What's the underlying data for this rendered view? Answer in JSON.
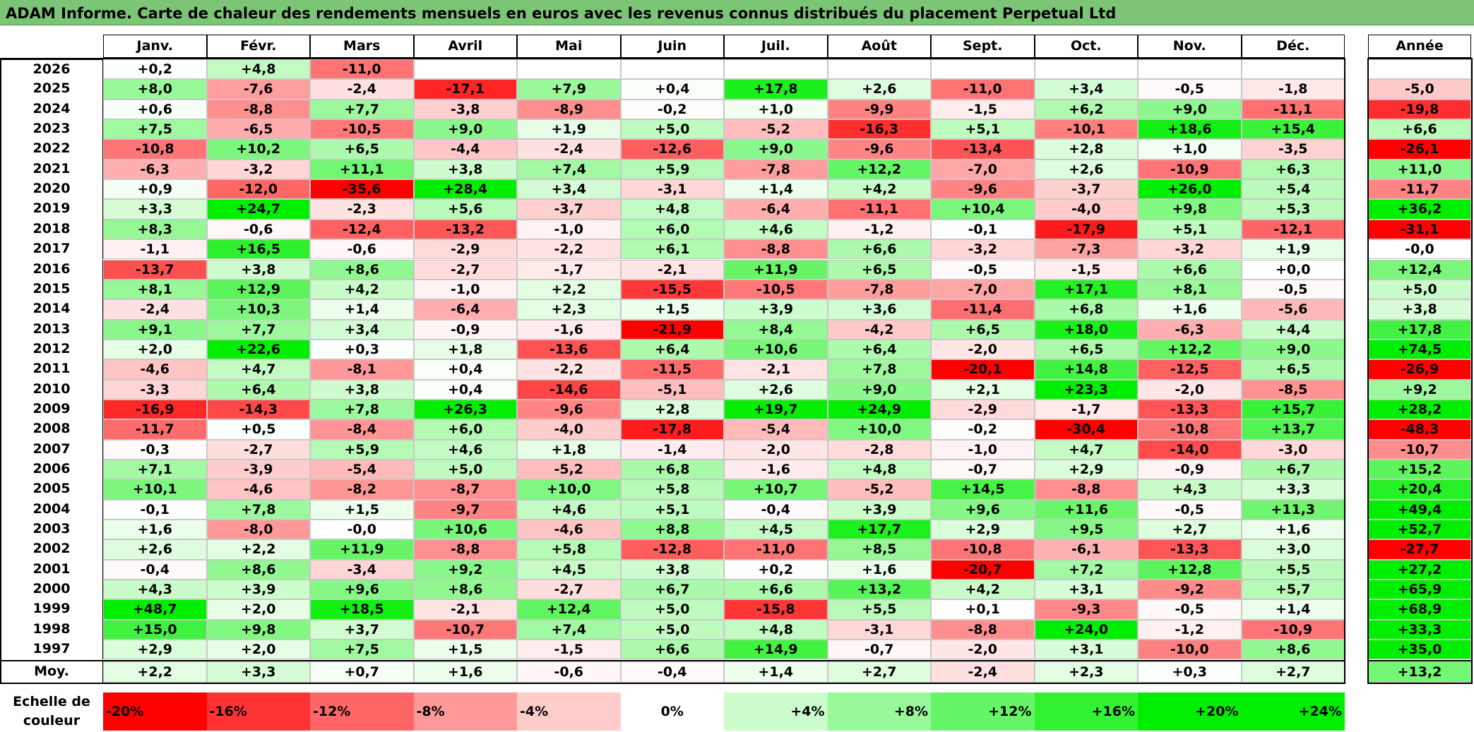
{
  "title": "ADAM Informe. Carte de chaleur des rendements mensuels en euros avec les revenus connus distribués du placement Perpetual Ltd",
  "chart_data": {
    "type": "heatmap",
    "title": "ADAM Informe. Carte de chaleur des rendements mensuels en euros avec les revenus connus distribués du placement Perpetual Ltd",
    "columns": [
      "Janv.",
      "Févr.",
      "Mars",
      "Avril",
      "Mai",
      "Juin",
      "Juil.",
      "Août",
      "Sept.",
      "Oct.",
      "Nov.",
      "Déc."
    ],
    "annual_header": "Année",
    "average_label": "Moy.",
    "rows": [
      {
        "year": "2026",
        "months": [
          "+0,2",
          "+4,8",
          "-11,0",
          "",
          "",
          "",
          "",
          "",
          "",
          "",
          "",
          ""
        ],
        "annual": ""
      },
      {
        "year": "2025",
        "months": [
          "+8,0",
          "-7,6",
          "-2,4",
          "-17,1",
          "+7,9",
          "+0,4",
          "+17,8",
          "+2,6",
          "-11,0",
          "+3,4",
          "-0,5",
          "-1,8"
        ],
        "annual": "-5,0"
      },
      {
        "year": "2024",
        "months": [
          "+0,6",
          "-8,8",
          "+7,7",
          "-3,8",
          "-8,9",
          "-0,2",
          "+1,0",
          "-9,9",
          "-1,5",
          "+6,2",
          "+9,0",
          "-11,1"
        ],
        "annual": "-19,8"
      },
      {
        "year": "2023",
        "months": [
          "+7,5",
          "-6,5",
          "-10,5",
          "+9,0",
          "+1,9",
          "+5,0",
          "-5,2",
          "-16,3",
          "+5,1",
          "-10,1",
          "+18,6",
          "+15,4"
        ],
        "annual": "+6,6"
      },
      {
        "year": "2022",
        "months": [
          "-10,8",
          "+10,2",
          "+6,5",
          "-4,4",
          "-2,4",
          "-12,6",
          "+9,0",
          "-9,6",
          "-13,4",
          "+2,8",
          "+1,0",
          "-3,5"
        ],
        "annual": "-26,1"
      },
      {
        "year": "2021",
        "months": [
          "-6,3",
          "-3,2",
          "+11,1",
          "+3,8",
          "+7,4",
          "+5,9",
          "-7,8",
          "+12,2",
          "-7,0",
          "+2,6",
          "-10,9",
          "+6,3"
        ],
        "annual": "+11,0"
      },
      {
        "year": "2020",
        "months": [
          "+0,9",
          "-12,0",
          "-35,6",
          "+28,4",
          "+3,4",
          "-3,1",
          "+1,4",
          "+4,2",
          "-9,6",
          "-3,7",
          "+26,0",
          "+5,4"
        ],
        "annual": "-11,7"
      },
      {
        "year": "2019",
        "months": [
          "+3,3",
          "+24,7",
          "-2,3",
          "+5,6",
          "-3,7",
          "+4,8",
          "-6,4",
          "-11,1",
          "+10,4",
          "-4,0",
          "+9,8",
          "+5,3"
        ],
        "annual": "+36,2"
      },
      {
        "year": "2018",
        "months": [
          "+8,3",
          "-0,6",
          "-12,4",
          "-13,2",
          "-1,0",
          "+6,0",
          "+4,6",
          "-1,2",
          "-0,1",
          "-17,9",
          "+5,1",
          "-12,1"
        ],
        "annual": "-31,1"
      },
      {
        "year": "2017",
        "months": [
          "-1,1",
          "+16,5",
          "-0,6",
          "-2,9",
          "-2,2",
          "+6,1",
          "-8,8",
          "+6,6",
          "-3,2",
          "-7,3",
          "-3,2",
          "+1,9"
        ],
        "annual": "-0,0"
      },
      {
        "year": "2016",
        "months": [
          "-13,7",
          "+3,8",
          "+8,6",
          "-2,7",
          "-1,7",
          "-2,1",
          "+11,9",
          "+6,5",
          "-0,5",
          "-1,5",
          "+6,6",
          "+0,0"
        ],
        "annual": "+12,4"
      },
      {
        "year": "2015",
        "months": [
          "+8,1",
          "+12,9",
          "+4,2",
          "-1,0",
          "+2,2",
          "-15,5",
          "-10,5",
          "-7,8",
          "-7,0",
          "+17,1",
          "+8,1",
          "-0,5"
        ],
        "annual": "+5,0"
      },
      {
        "year": "2014",
        "months": [
          "-2,4",
          "+10,3",
          "+1,4",
          "-6,4",
          "+2,3",
          "+1,5",
          "+3,9",
          "+3,6",
          "-11,4",
          "+6,8",
          "+1,6",
          "-5,6"
        ],
        "annual": "+3,8"
      },
      {
        "year": "2013",
        "months": [
          "+9,1",
          "+7,7",
          "+3,4",
          "-0,9",
          "-1,6",
          "-21,9",
          "+8,4",
          "-4,2",
          "+6,5",
          "+18,0",
          "-6,3",
          "+4,4"
        ],
        "annual": "+17,8"
      },
      {
        "year": "2012",
        "months": [
          "+2,0",
          "+22,6",
          "+0,3",
          "+1,8",
          "-13,6",
          "+6,4",
          "+10,6",
          "+6,4",
          "-2,0",
          "+6,5",
          "+12,2",
          "+9,0"
        ],
        "annual": "+74,5"
      },
      {
        "year": "2011",
        "months": [
          "-4,6",
          "+4,7",
          "-8,1",
          "+0,4",
          "-2,2",
          "-11,5",
          "-2,1",
          "+7,8",
          "-20,1",
          "+14,8",
          "-12,5",
          "+6,5"
        ],
        "annual": "-26,9"
      },
      {
        "year": "2010",
        "months": [
          "-3,3",
          "+6,4",
          "+3,8",
          "+0,4",
          "-14,6",
          "-5,1",
          "+2,6",
          "+9,0",
          "+2,1",
          "+23,3",
          "-2,0",
          "-8,5"
        ],
        "annual": "+9,2"
      },
      {
        "year": "2009",
        "months": [
          "-16,9",
          "-14,3",
          "+7,8",
          "+26,3",
          "-9,6",
          "+2,8",
          "+19,7",
          "+24,9",
          "-2,9",
          "-1,7",
          "-13,3",
          "+15,7"
        ],
        "annual": "+28,2"
      },
      {
        "year": "2008",
        "months": [
          "-11,7",
          "+0,5",
          "-8,4",
          "+6,0",
          "-4,0",
          "-17,8",
          "-5,4",
          "+10,0",
          "-0,2",
          "-30,4",
          "-10,8",
          "+13,7"
        ],
        "annual": "-48,3"
      },
      {
        "year": "2007",
        "months": [
          "-0,3",
          "-2,7",
          "+5,9",
          "+4,6",
          "+1,8",
          "-1,4",
          "-2,0",
          "-2,8",
          "-1,0",
          "+4,7",
          "-14,0",
          "-3,0"
        ],
        "annual": "-10,7"
      },
      {
        "year": "2006",
        "months": [
          "+7,1",
          "-3,9",
          "-5,4",
          "+5,0",
          "-5,2",
          "+6,8",
          "-1,6",
          "+4,8",
          "-0,7",
          "+2,9",
          "-0,9",
          "+6,7"
        ],
        "annual": "+15,2"
      },
      {
        "year": "2005",
        "months": [
          "+10,1",
          "-4,6",
          "-8,2",
          "-8,7",
          "+10,0",
          "+5,8",
          "+10,7",
          "-5,2",
          "+14,5",
          "-8,8",
          "+4,3",
          "+3,3"
        ],
        "annual": "+20,4"
      },
      {
        "year": "2004",
        "months": [
          "-0,1",
          "+7,8",
          "+1,5",
          "-9,7",
          "+4,6",
          "+5,1",
          "-0,4",
          "+3,9",
          "+9,6",
          "+11,6",
          "-0,5",
          "+11,3"
        ],
        "annual": "+49,4"
      },
      {
        "year": "2003",
        "months": [
          "+1,6",
          "-8,0",
          "-0,0",
          "+10,6",
          "-4,6",
          "+8,8",
          "+4,5",
          "+17,7",
          "+2,9",
          "+9,5",
          "+2,7",
          "+1,6"
        ],
        "annual": "+52,7"
      },
      {
        "year": "2002",
        "months": [
          "+2,6",
          "+2,2",
          "+11,9",
          "-8,8",
          "+5,8",
          "-12,8",
          "-11,0",
          "+8,5",
          "-10,8",
          "-6,1",
          "-13,3",
          "+3,0"
        ],
        "annual": "-27,7"
      },
      {
        "year": "2001",
        "months": [
          "-0,4",
          "+8,6",
          "-3,4",
          "+9,2",
          "+4,5",
          "+3,8",
          "+0,2",
          "+1,6",
          "-20,7",
          "+7,2",
          "+12,8",
          "+5,5"
        ],
        "annual": "+27,2"
      },
      {
        "year": "2000",
        "months": [
          "+4,3",
          "+3,9",
          "+9,6",
          "+8,6",
          "-2,7",
          "+6,7",
          "+6,6",
          "+13,2",
          "+4,2",
          "+3,1",
          "-9,2",
          "+5,7"
        ],
        "annual": "+65,9"
      },
      {
        "year": "1999",
        "months": [
          "+48,7",
          "+2,0",
          "+18,5",
          "-2,1",
          "+12,4",
          "+5,0",
          "-15,8",
          "+5,5",
          "+0,1",
          "-9,3",
          "-0,5",
          "+1,4"
        ],
        "annual": "+68,9"
      },
      {
        "year": "1998",
        "months": [
          "+15,0",
          "+9,8",
          "+3,7",
          "-10,7",
          "+7,4",
          "+5,0",
          "+4,8",
          "-3,1",
          "-8,8",
          "+24,0",
          "-1,2",
          "-10,9"
        ],
        "annual": "+33,3"
      },
      {
        "year": "1997",
        "months": [
          "+2,9",
          "+2,0",
          "+7,5",
          "+1,5",
          "-1,5",
          "+6,6",
          "+14,9",
          "-0,7",
          "-2,0",
          "+3,1",
          "-10,0",
          "+8,6"
        ],
        "annual": "+35,0"
      }
    ],
    "averages": [
      "+2,2",
      "+3,3",
      "+0,7",
      "+1,6",
      "-0,6",
      "-0,4",
      "+1,4",
      "+2,7",
      "-2,4",
      "+2,3",
      "+0,3",
      "+2,7"
    ],
    "average_annual": "+13,2",
    "scale_label": "Echelle de couleur",
    "scale": [
      "-20%",
      "-16%",
      "-12%",
      "-8%",
      "-4%",
      "0%",
      "+4%",
      "+8%",
      "+12%",
      "+16%",
      "+20%",
      "+24%"
    ],
    "colors": {
      "negative_max": "#ff0000",
      "neutral": "#ffffff",
      "positive_max": "#00ee00"
    }
  }
}
